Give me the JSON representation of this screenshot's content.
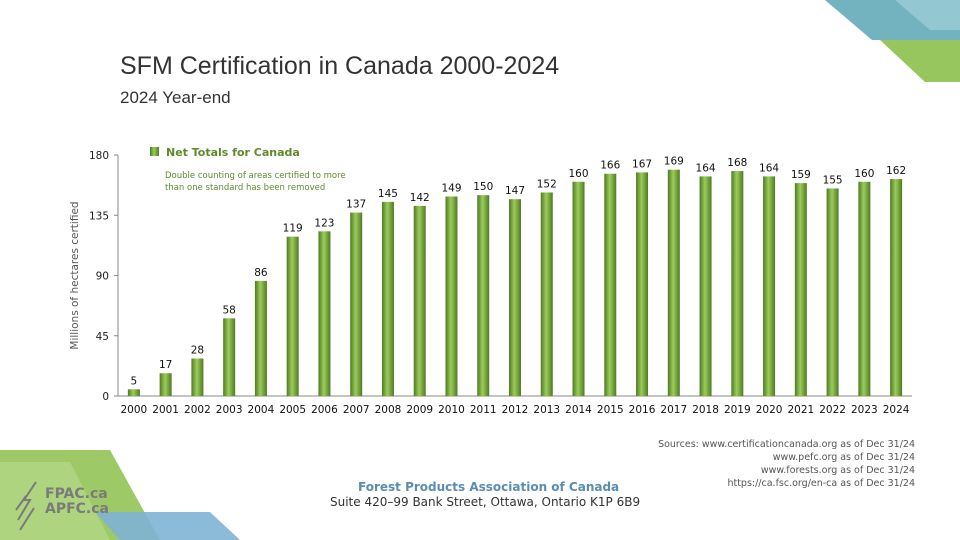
{
  "header": {
    "title": "SFM Certification in Canada 2000-2024",
    "subtitle": "2024 Year-end"
  },
  "chart_data": {
    "type": "bar",
    "ylabel": "Millions of hectares certified",
    "xlabel": "",
    "ylim": [
      0,
      180
    ],
    "yticks": [
      0,
      45,
      90,
      135,
      180
    ],
    "grid": false,
    "legend_position": "top-left",
    "categories": [
      "2000",
      "2001",
      "2002",
      "2003",
      "2004",
      "2005",
      "2006",
      "2007",
      "2008",
      "2009",
      "2010",
      "2011",
      "2012",
      "2013",
      "2014",
      "2015",
      "2016",
      "2017",
      "2018",
      "2019",
      "2020",
      "2021",
      "2022",
      "2023",
      "2024"
    ],
    "series": [
      {
        "name": "Net Totals for Canada",
        "values": [
          5,
          17,
          28,
          58,
          86,
          119,
          123,
          137,
          145,
          142,
          149,
          150,
          147,
          152,
          160,
          166,
          167,
          169,
          164,
          168,
          164,
          159,
          155,
          160,
          162
        ]
      }
    ],
    "annotation": [
      "Double counting of areas certified to more",
      "than one standard has been removed"
    ],
    "colors": {
      "bar_light": "#9ccc5a",
      "bar_dark": "#4f7a22",
      "legend_text": "#5f8a2a"
    }
  },
  "sources": [
    "Sources: www.certificationcanada.org as of Dec 31/24",
    "www.pefc.org as of Dec 31/24",
    "www.forests.org as of Dec 31/24",
    "https://ca.fsc.org/en-ca as of Dec 31/24"
  ],
  "footer": {
    "org_name": "Forest Products Association of Canada",
    "address": "Suite 420–99 Bank Street, Ottawa, Ontario K1P 6B9"
  },
  "logo": {
    "line1": "FPAC.ca",
    "line2": "APFC.ca"
  },
  "decor_colors": {
    "teal": "#5aa6b5",
    "green": "#8cc04c",
    "blue": "#7fb3d5"
  }
}
